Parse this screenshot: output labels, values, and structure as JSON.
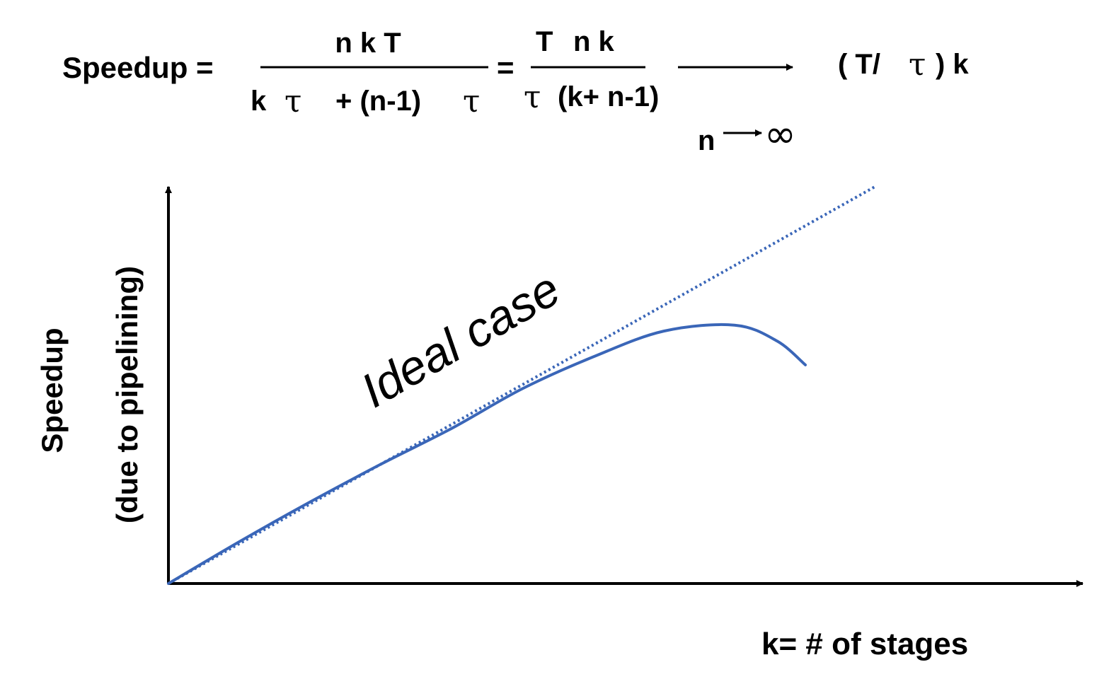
{
  "formula": {
    "lhs": "Speedup =",
    "eq1_numerator": "n k T",
    "eq1_denominator": {
      "k": "k",
      "tau_a": "τ",
      "plus": "+ (n-1)",
      "tau_b": "τ"
    },
    "equals": "=",
    "eq2_numerator": {
      "T": "T",
      "nk": "n k"
    },
    "eq2_denominator": {
      "tau": "τ",
      "rest": "(k+ n-1)"
    },
    "limit_var": "n",
    "limit_inf": "∞",
    "result": {
      "open": "( T/",
      "tau": "τ",
      "close": ") k"
    }
  },
  "chart_data": {
    "type": "line",
    "title": "",
    "xlabel": "k= # of stages",
    "ylabel_line1": "Speedup",
    "ylabel_line2": "(due to pipelining)",
    "grid": false,
    "legend": "none",
    "annotation": "Ideal case",
    "color": "#3a66b8",
    "series": [
      {
        "style": "dotted",
        "x": [
          0,
          10
        ],
        "y": [
          0,
          10
        ]
      },
      {
        "style": "solid",
        "x": [
          0,
          1,
          2,
          3,
          4,
          5,
          6,
          7,
          8,
          8.6,
          9
        ],
        "y": [
          0,
          1.05,
          2.05,
          3.0,
          3.9,
          4.9,
          5.7,
          6.35,
          6.5,
          6.1,
          5.5
        ]
      }
    ]
  }
}
